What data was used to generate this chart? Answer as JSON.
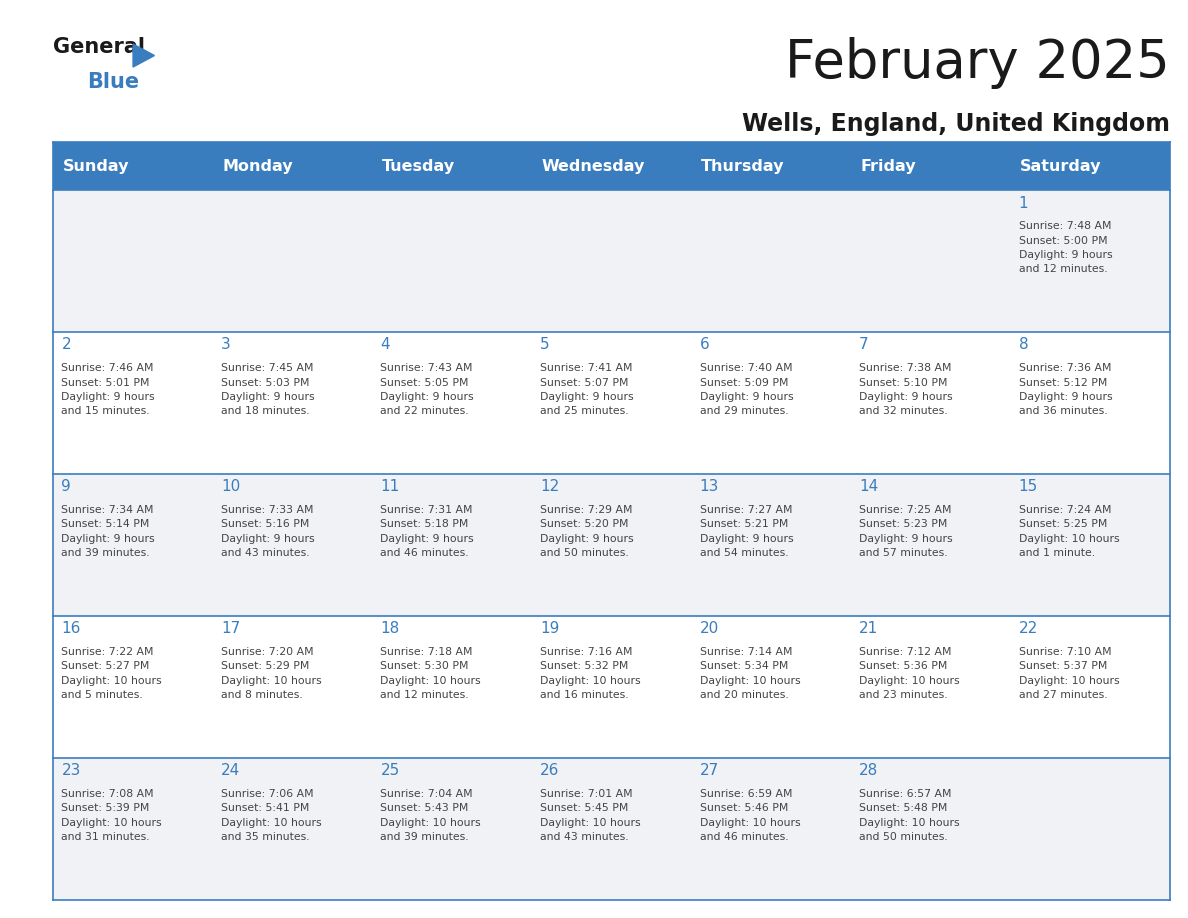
{
  "title": "February 2025",
  "subtitle": "Wells, England, United Kingdom",
  "days_of_week": [
    "Sunday",
    "Monday",
    "Tuesday",
    "Wednesday",
    "Thursday",
    "Friday",
    "Saturday"
  ],
  "header_bg_color": "#3a7dbf",
  "header_text_color": "#ffffff",
  "row_bg_even": "#f0f2f5",
  "row_bg_odd": "#ffffff",
  "day_number_color": "#3a7dbf",
  "info_text_color": "#444444",
  "grid_line_color": "#3a7dbf",
  "title_color": "#1a1a1a",
  "subtitle_color": "#1a1a1a",
  "logo_general_color": "#1a1a1a",
  "logo_blue_color": "#3a7dbf",
  "calendar_data": [
    [
      {
        "day": null,
        "info": null
      },
      {
        "day": null,
        "info": null
      },
      {
        "day": null,
        "info": null
      },
      {
        "day": null,
        "info": null
      },
      {
        "day": null,
        "info": null
      },
      {
        "day": null,
        "info": null
      },
      {
        "day": 1,
        "info": "Sunrise: 7:48 AM\nSunset: 5:00 PM\nDaylight: 9 hours\nand 12 minutes."
      }
    ],
    [
      {
        "day": 2,
        "info": "Sunrise: 7:46 AM\nSunset: 5:01 PM\nDaylight: 9 hours\nand 15 minutes."
      },
      {
        "day": 3,
        "info": "Sunrise: 7:45 AM\nSunset: 5:03 PM\nDaylight: 9 hours\nand 18 minutes."
      },
      {
        "day": 4,
        "info": "Sunrise: 7:43 AM\nSunset: 5:05 PM\nDaylight: 9 hours\nand 22 minutes."
      },
      {
        "day": 5,
        "info": "Sunrise: 7:41 AM\nSunset: 5:07 PM\nDaylight: 9 hours\nand 25 minutes."
      },
      {
        "day": 6,
        "info": "Sunrise: 7:40 AM\nSunset: 5:09 PM\nDaylight: 9 hours\nand 29 minutes."
      },
      {
        "day": 7,
        "info": "Sunrise: 7:38 AM\nSunset: 5:10 PM\nDaylight: 9 hours\nand 32 minutes."
      },
      {
        "day": 8,
        "info": "Sunrise: 7:36 AM\nSunset: 5:12 PM\nDaylight: 9 hours\nand 36 minutes."
      }
    ],
    [
      {
        "day": 9,
        "info": "Sunrise: 7:34 AM\nSunset: 5:14 PM\nDaylight: 9 hours\nand 39 minutes."
      },
      {
        "day": 10,
        "info": "Sunrise: 7:33 AM\nSunset: 5:16 PM\nDaylight: 9 hours\nand 43 minutes."
      },
      {
        "day": 11,
        "info": "Sunrise: 7:31 AM\nSunset: 5:18 PM\nDaylight: 9 hours\nand 46 minutes."
      },
      {
        "day": 12,
        "info": "Sunrise: 7:29 AM\nSunset: 5:20 PM\nDaylight: 9 hours\nand 50 minutes."
      },
      {
        "day": 13,
        "info": "Sunrise: 7:27 AM\nSunset: 5:21 PM\nDaylight: 9 hours\nand 54 minutes."
      },
      {
        "day": 14,
        "info": "Sunrise: 7:25 AM\nSunset: 5:23 PM\nDaylight: 9 hours\nand 57 minutes."
      },
      {
        "day": 15,
        "info": "Sunrise: 7:24 AM\nSunset: 5:25 PM\nDaylight: 10 hours\nand 1 minute."
      }
    ],
    [
      {
        "day": 16,
        "info": "Sunrise: 7:22 AM\nSunset: 5:27 PM\nDaylight: 10 hours\nand 5 minutes."
      },
      {
        "day": 17,
        "info": "Sunrise: 7:20 AM\nSunset: 5:29 PM\nDaylight: 10 hours\nand 8 minutes."
      },
      {
        "day": 18,
        "info": "Sunrise: 7:18 AM\nSunset: 5:30 PM\nDaylight: 10 hours\nand 12 minutes."
      },
      {
        "day": 19,
        "info": "Sunrise: 7:16 AM\nSunset: 5:32 PM\nDaylight: 10 hours\nand 16 minutes."
      },
      {
        "day": 20,
        "info": "Sunrise: 7:14 AM\nSunset: 5:34 PM\nDaylight: 10 hours\nand 20 minutes."
      },
      {
        "day": 21,
        "info": "Sunrise: 7:12 AM\nSunset: 5:36 PM\nDaylight: 10 hours\nand 23 minutes."
      },
      {
        "day": 22,
        "info": "Sunrise: 7:10 AM\nSunset: 5:37 PM\nDaylight: 10 hours\nand 27 minutes."
      }
    ],
    [
      {
        "day": 23,
        "info": "Sunrise: 7:08 AM\nSunset: 5:39 PM\nDaylight: 10 hours\nand 31 minutes."
      },
      {
        "day": 24,
        "info": "Sunrise: 7:06 AM\nSunset: 5:41 PM\nDaylight: 10 hours\nand 35 minutes."
      },
      {
        "day": 25,
        "info": "Sunrise: 7:04 AM\nSunset: 5:43 PM\nDaylight: 10 hours\nand 39 minutes."
      },
      {
        "day": 26,
        "info": "Sunrise: 7:01 AM\nSunset: 5:45 PM\nDaylight: 10 hours\nand 43 minutes."
      },
      {
        "day": 27,
        "info": "Sunrise: 6:59 AM\nSunset: 5:46 PM\nDaylight: 10 hours\nand 46 minutes."
      },
      {
        "day": 28,
        "info": "Sunrise: 6:57 AM\nSunset: 5:48 PM\nDaylight: 10 hours\nand 50 minutes."
      },
      {
        "day": null,
        "info": null
      }
    ]
  ],
  "fig_width": 11.88,
  "fig_height": 9.18,
  "dpi": 100
}
